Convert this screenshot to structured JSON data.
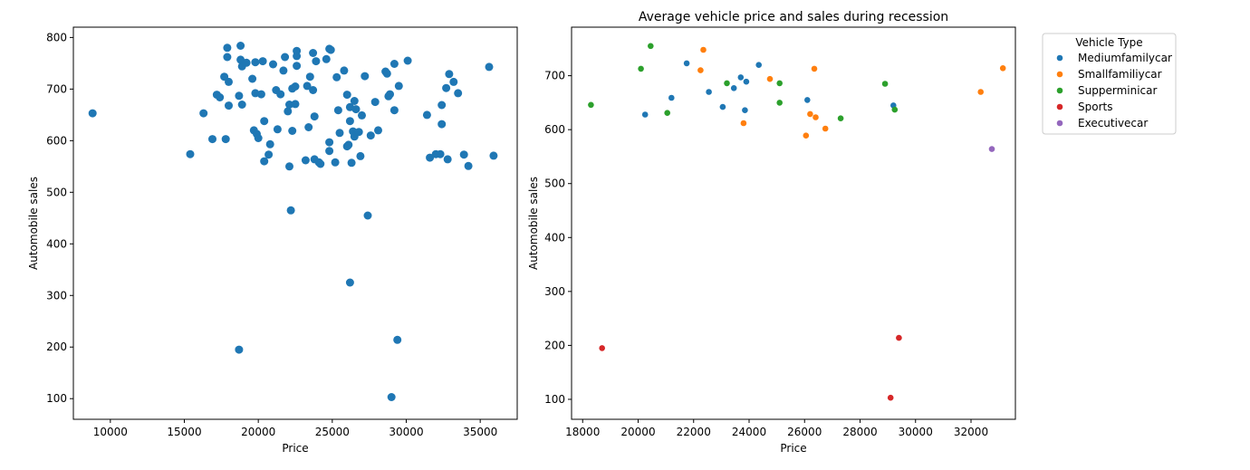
{
  "chart_data": [
    {
      "type": "scatter",
      "title": "",
      "xlabel": "Price",
      "ylabel": "Automobile sales",
      "xlim": [
        7500,
        37500
      ],
      "ylim": [
        60,
        820
      ],
      "xticks": [
        10000,
        15000,
        20000,
        25000,
        30000,
        35000
      ],
      "yticks": [
        100,
        200,
        300,
        400,
        500,
        600,
        700,
        800
      ],
      "color": "#1f77b4",
      "points": [
        [
          8800,
          653
        ],
        [
          15400,
          574
        ],
        [
          16300,
          653
        ],
        [
          16900,
          603
        ],
        [
          17200,
          689
        ],
        [
          17400,
          684
        ],
        [
          17700,
          724
        ],
        [
          17800,
          603
        ],
        [
          17900,
          762
        ],
        [
          17900,
          780
        ],
        [
          18000,
          714
        ],
        [
          18000,
          668
        ],
        [
          18700,
          195
        ],
        [
          18700,
          687
        ],
        [
          18800,
          784
        ],
        [
          18800,
          757
        ],
        [
          18900,
          744
        ],
        [
          18900,
          670
        ],
        [
          19200,
          751
        ],
        [
          19600,
          720
        ],
        [
          19700,
          620
        ],
        [
          19800,
          692
        ],
        [
          19800,
          752
        ],
        [
          19900,
          613
        ],
        [
          20000,
          605
        ],
        [
          20200,
          690
        ],
        [
          20300,
          754
        ],
        [
          20400,
          560
        ],
        [
          20400,
          638
        ],
        [
          20700,
          573
        ],
        [
          20800,
          593
        ],
        [
          21000,
          748
        ],
        [
          21200,
          698
        ],
        [
          21300,
          622
        ],
        [
          21500,
          690
        ],
        [
          21700,
          736
        ],
        [
          21800,
          762
        ],
        [
          22000,
          657
        ],
        [
          22100,
          670
        ],
        [
          22100,
          550
        ],
        [
          22200,
          465
        ],
        [
          22300,
          701
        ],
        [
          22300,
          619
        ],
        [
          22500,
          705
        ],
        [
          22500,
          671
        ],
        [
          22600,
          745
        ],
        [
          22600,
          764
        ],
        [
          22600,
          774
        ],
        [
          23200,
          562
        ],
        [
          23300,
          706
        ],
        [
          23400,
          626
        ],
        [
          23500,
          724
        ],
        [
          23700,
          770
        ],
        [
          23700,
          698
        ],
        [
          23800,
          647
        ],
        [
          23800,
          564
        ],
        [
          23900,
          754
        ],
        [
          24100,
          558
        ],
        [
          24200,
          555
        ],
        [
          24600,
          758
        ],
        [
          24800,
          778
        ],
        [
          24900,
          776
        ],
        [
          24800,
          597
        ],
        [
          24800,
          580
        ],
        [
          25200,
          558
        ],
        [
          25300,
          723
        ],
        [
          25400,
          659
        ],
        [
          25500,
          615
        ],
        [
          25800,
          736
        ],
        [
          26000,
          589
        ],
        [
          26000,
          689
        ],
        [
          26100,
          592
        ],
        [
          26200,
          638
        ],
        [
          26200,
          665
        ],
        [
          26200,
          325
        ],
        [
          26300,
          557
        ],
        [
          26400,
          618
        ],
        [
          26500,
          608
        ],
        [
          26500,
          677
        ],
        [
          26600,
          661
        ],
        [
          26800,
          617
        ],
        [
          26900,
          570
        ],
        [
          27000,
          649
        ],
        [
          27200,
          725
        ],
        [
          27400,
          455
        ],
        [
          27600,
          610
        ],
        [
          27900,
          675
        ],
        [
          28100,
          620
        ],
        [
          28600,
          734
        ],
        [
          28700,
          730
        ],
        [
          28800,
          686
        ],
        [
          28900,
          690
        ],
        [
          29000,
          103
        ],
        [
          29200,
          749
        ],
        [
          29200,
          659
        ],
        [
          29400,
          214
        ],
        [
          29500,
          706
        ],
        [
          30100,
          755
        ],
        [
          31400,
          650
        ],
        [
          31600,
          567
        ],
        [
          32000,
          574
        ],
        [
          32300,
          574
        ],
        [
          32400,
          632
        ],
        [
          32400,
          669
        ],
        [
          32700,
          702
        ],
        [
          32800,
          564
        ],
        [
          32900,
          729
        ],
        [
          33200,
          714
        ],
        [
          33500,
          692
        ],
        [
          33900,
          573
        ],
        [
          34200,
          551
        ],
        [
          35600,
          743
        ],
        [
          35900,
          571
        ]
      ]
    },
    {
      "type": "scatter",
      "title": "Average vehicle price and sales during recession",
      "xlabel": "Price",
      "ylabel": "Automobile sales",
      "xlim": [
        17600,
        33600
      ],
      "ylim": [
        63,
        790
      ],
      "xticks": [
        18000,
        20000,
        22000,
        24000,
        26000,
        28000,
        30000,
        32000
      ],
      "yticks": [
        100,
        200,
        300,
        400,
        500,
        600,
        700
      ],
      "legend": {
        "title": "Vehicle Type",
        "position": "outside-right"
      },
      "series": [
        {
          "name": "Mediumfamilycar",
          "color": "#1f77b4",
          "points": [
            [
              20250,
              628
            ],
            [
              21200,
              659
            ],
            [
              21750,
              723
            ],
            [
              22550,
              670
            ],
            [
              23050,
              642
            ],
            [
              23450,
              677
            ],
            [
              23700,
              697
            ],
            [
              23850,
              636
            ],
            [
              23900,
              689
            ],
            [
              24350,
              720
            ],
            [
              26100,
              655
            ],
            [
              29200,
              645
            ]
          ]
        },
        {
          "name": "Smallfamiliycar",
          "color": "#ff7f0e",
          "points": [
            [
              22250,
              710
            ],
            [
              22350,
              748
            ],
            [
              23800,
              612
            ],
            [
              24750,
              694
            ],
            [
              26050,
              589
            ],
            [
              26200,
              629
            ],
            [
              26350,
              713
            ],
            [
              26400,
              623
            ],
            [
              26750,
              602
            ],
            [
              32350,
              670
            ],
            [
              33150,
              714
            ]
          ]
        },
        {
          "name": "Supperminicar",
          "color": "#2ca02c",
          "points": [
            [
              18300,
              646
            ],
            [
              20100,
              713
            ],
            [
              20450,
              755
            ],
            [
              21050,
              631
            ],
            [
              23200,
              686
            ],
            [
              25100,
              686
            ],
            [
              25100,
              650
            ],
            [
              27300,
              621
            ],
            [
              28900,
              685
            ],
            [
              29250,
              637
            ]
          ]
        },
        {
          "name": "Sports",
          "color": "#d62728",
          "points": [
            [
              18700,
              195
            ],
            [
              29100,
              103
            ],
            [
              29400,
              214
            ]
          ]
        },
        {
          "name": "Executivecar",
          "color": "#9467bd",
          "points": [
            [
              32750,
              564
            ]
          ]
        }
      ]
    }
  ]
}
